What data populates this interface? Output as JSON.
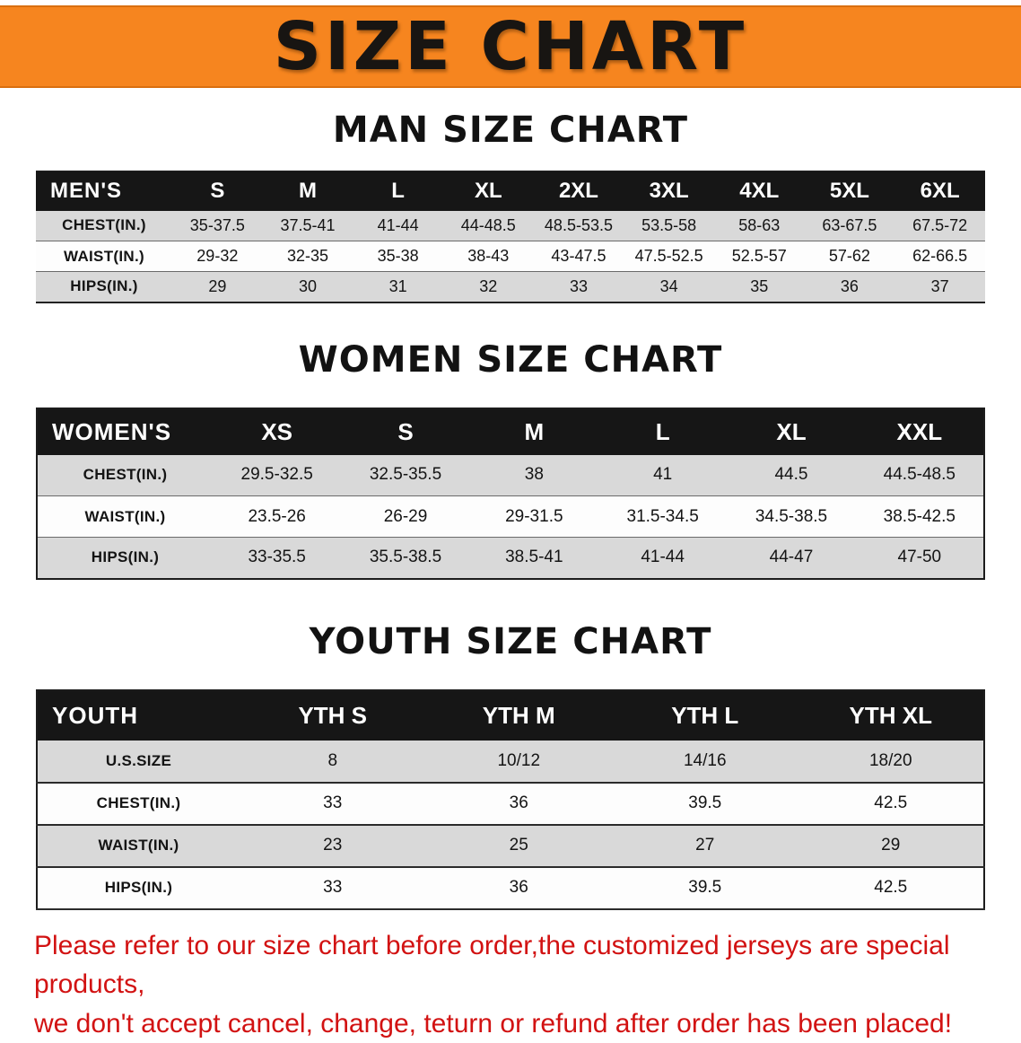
{
  "banner": {
    "title": "SIZE CHART"
  },
  "colors": {
    "banner_bg": "#f6851f",
    "banner_text": "#181512",
    "header_bar_bg": "#161616",
    "header_bar_text": "#ffffff",
    "row_stripe_gray": "#d9d9d9",
    "row_stripe_white": "#fdfdfd",
    "disclaimer_red": "#d21212"
  },
  "chart_data": [
    {
      "type": "table",
      "title": "MAN SIZE CHART",
      "header": [
        "MEN'S",
        "S",
        "M",
        "L",
        "XL",
        "2XL",
        "3XL",
        "4XL",
        "5XL",
        "6XL"
      ],
      "rows": [
        [
          "CHEST(IN.)",
          "35-37.5",
          "37.5-41",
          "41-44",
          "44-48.5",
          "48.5-53.5",
          "53.5-58",
          "58-63",
          "63-67.5",
          "67.5-72"
        ],
        [
          "WAIST(IN.)",
          "29-32",
          "32-35",
          "35-38",
          "38-43",
          "43-47.5",
          "47.5-52.5",
          "52.5-57",
          "57-62",
          "62-66.5"
        ],
        [
          "HIPS(IN.)",
          "29",
          "30",
          "31",
          "32",
          "33",
          "34",
          "35",
          "36",
          "37"
        ]
      ]
    },
    {
      "type": "table",
      "title": "WOMEN SIZE CHART",
      "header": [
        "WOMEN'S",
        "XS",
        "S",
        "M",
        "L",
        "XL",
        "XXL"
      ],
      "rows": [
        [
          "CHEST(IN.)",
          "29.5-32.5",
          "32.5-35.5",
          "38",
          "41",
          "44.5",
          "44.5-48.5"
        ],
        [
          "WAIST(IN.)",
          "23.5-26",
          "26-29",
          "29-31.5",
          "31.5-34.5",
          "34.5-38.5",
          "38.5-42.5"
        ],
        [
          "HIPS(IN.)",
          "33-35.5",
          "35.5-38.5",
          "38.5-41",
          "41-44",
          "44-47",
          "47-50"
        ]
      ]
    },
    {
      "type": "table",
      "title": "YOUTH SIZE CHART",
      "header": [
        "YOUTH",
        "YTH S",
        "YTH M",
        "YTH L",
        "YTH XL"
      ],
      "rows": [
        [
          "U.S.SIZE",
          "8",
          "10/12",
          "14/16",
          "18/20"
        ],
        [
          "CHEST(IN.)",
          "33",
          "36",
          "39.5",
          "42.5"
        ],
        [
          "WAIST(IN.)",
          "23",
          "25",
          "27",
          "29"
        ],
        [
          "HIPS(IN.)",
          "33",
          "36",
          "39.5",
          "42.5"
        ]
      ]
    }
  ],
  "disclaimer": {
    "line1": "Please refer to our size chart before order,the customized jerseys are special products,",
    "line2": "we don't accept cancel, change, teturn or refund after order has been placed!"
  }
}
